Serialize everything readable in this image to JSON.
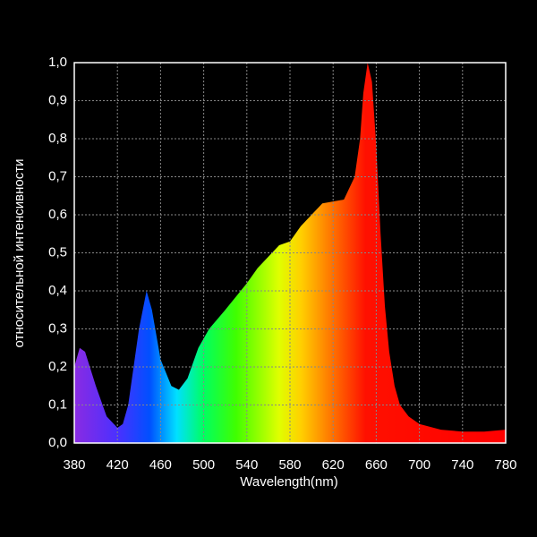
{
  "chart_data": {
    "type": "area",
    "xlabel": "Wavelength(nm)",
    "ylabel": "относительной интенсивности",
    "x": [
      380,
      385,
      390,
      400,
      410,
      420,
      425,
      430,
      440,
      447,
      452,
      460,
      470,
      477,
      485,
      495,
      505,
      520,
      540,
      550,
      560,
      570,
      580,
      590,
      600,
      610,
      620,
      630,
      640,
      645,
      648,
      652,
      656,
      660,
      664,
      668,
      672,
      677,
      682,
      690,
      700,
      720,
      740,
      760,
      780
    ],
    "values": [
      0.2,
      0.25,
      0.24,
      0.15,
      0.07,
      0.04,
      0.05,
      0.1,
      0.3,
      0.4,
      0.35,
      0.22,
      0.15,
      0.14,
      0.17,
      0.25,
      0.3,
      0.35,
      0.42,
      0.46,
      0.49,
      0.52,
      0.53,
      0.57,
      0.6,
      0.63,
      0.635,
      0.64,
      0.7,
      0.8,
      0.92,
      1.0,
      0.95,
      0.78,
      0.55,
      0.36,
      0.24,
      0.15,
      0.1,
      0.07,
      0.05,
      0.035,
      0.03,
      0.03,
      0.035
    ],
    "gradient": [
      {
        "x": 380,
        "color": "#8a2be2"
      },
      {
        "x": 420,
        "color": "#4b30ff"
      },
      {
        "x": 450,
        "color": "#0050ff"
      },
      {
        "x": 475,
        "color": "#00e0ff"
      },
      {
        "x": 500,
        "color": "#00ff60"
      },
      {
        "x": 530,
        "color": "#40ff00"
      },
      {
        "x": 570,
        "color": "#e0ff00"
      },
      {
        "x": 590,
        "color": "#ffd000"
      },
      {
        "x": 620,
        "color": "#ff7000"
      },
      {
        "x": 650,
        "color": "#ff1000"
      },
      {
        "x": 780,
        "color": "#ff0000"
      }
    ],
    "xlim": [
      380,
      780
    ],
    "ylim": [
      0,
      1
    ],
    "xticks": [
      380,
      420,
      460,
      500,
      540,
      580,
      620,
      660,
      700,
      740,
      780
    ],
    "yticks": [
      {
        "value": 0,
        "label": "0,0"
      },
      {
        "value": 0.1,
        "label": "0,1"
      },
      {
        "value": 0.2,
        "label": "0,2"
      },
      {
        "value": 0.3,
        "label": "0,3"
      },
      {
        "value": 0.4,
        "label": "0,4"
      },
      {
        "value": 0.5,
        "label": "0,5"
      },
      {
        "value": 0.6,
        "label": "0,6"
      },
      {
        "value": 0.7,
        "label": "0,7"
      },
      {
        "value": 0.8,
        "label": "0,8"
      },
      {
        "value": 0.9,
        "label": "0,9"
      },
      {
        "value": 1,
        "label": "1,0"
      }
    ],
    "grid": true
  }
}
